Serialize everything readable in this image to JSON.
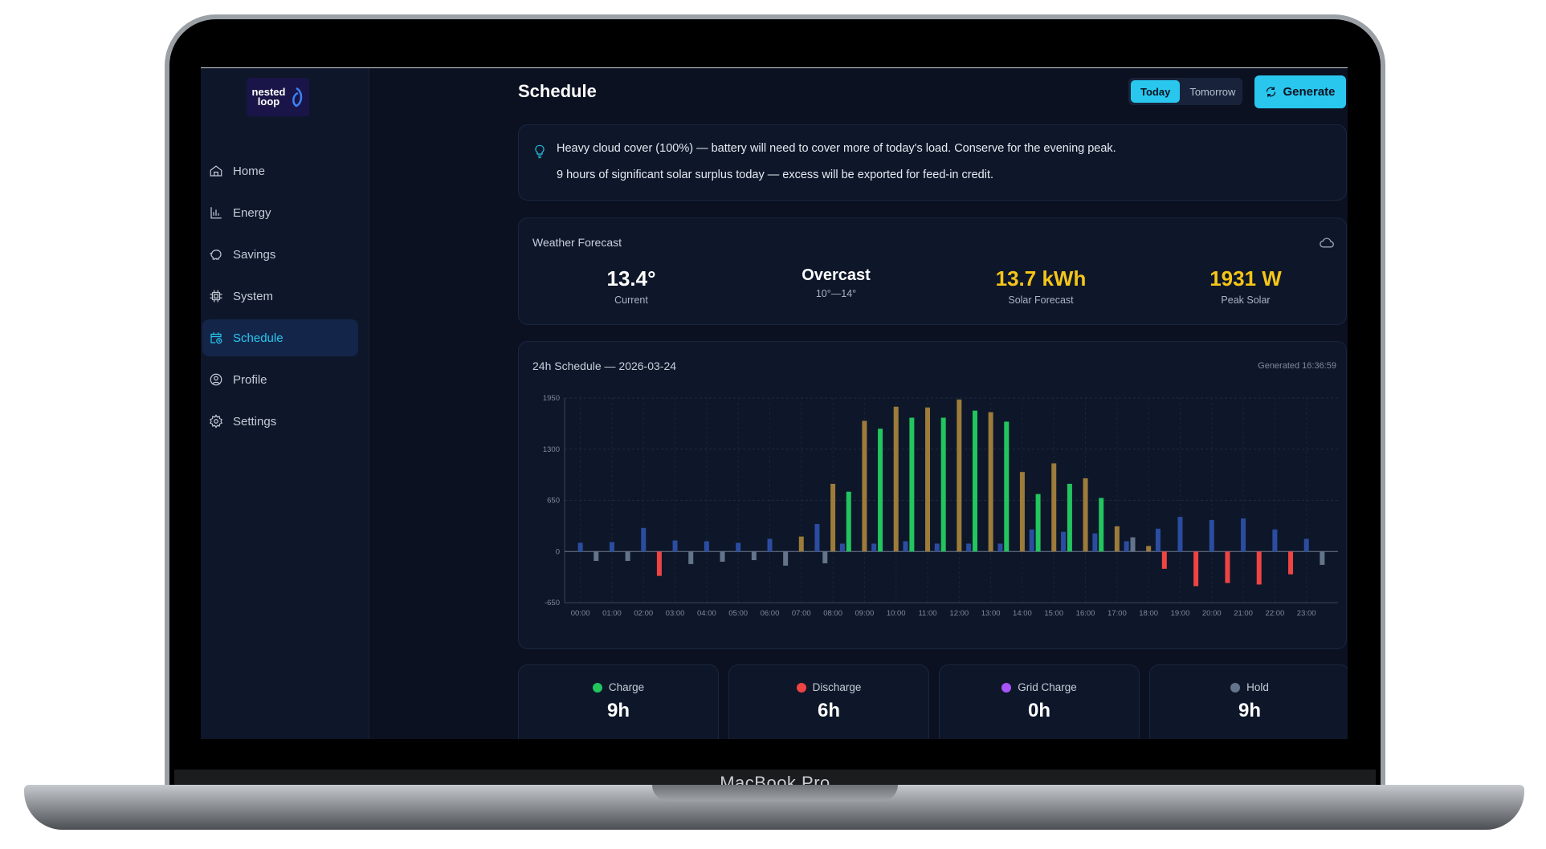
{
  "device": {
    "label": "MacBook Pro"
  },
  "brand": {
    "logo_text": "nested loop"
  },
  "sidebar": {
    "items": [
      {
        "label": "Home",
        "icon": "home-icon"
      },
      {
        "label": "Energy",
        "icon": "bar-chart-icon"
      },
      {
        "label": "Savings",
        "icon": "piggy-bank-icon"
      },
      {
        "label": "System",
        "icon": "chip-icon"
      },
      {
        "label": "Schedule",
        "icon": "calendar-clock-icon",
        "active": true
      },
      {
        "label": "Profile",
        "icon": "user-circle-icon"
      },
      {
        "label": "Settings",
        "icon": "gear-icon"
      }
    ]
  },
  "header": {
    "title": "Schedule",
    "toggle": {
      "today": "Today",
      "tomorrow": "Tomorrow",
      "selected": "Today"
    },
    "generate_label": "Generate"
  },
  "insights": [
    "Heavy cloud cover (100%) — battery will need to cover more of today's load. Conserve for the evening peak.",
    "9 hours of significant solar surplus today — excess will be exported for feed-in credit."
  ],
  "weather": {
    "title": "Weather Forecast",
    "current_value": "13.4°",
    "current_label": "Current",
    "condition_value": "Overcast",
    "condition_range": "10°—14°",
    "solar_value": "13.7 kWh",
    "solar_label": "Solar Forecast",
    "peak_value": "1931 W",
    "peak_label": "Peak Solar"
  },
  "schedule": {
    "title": "24h Schedule — 2026-03-24",
    "generated": "Generated 16:36:59"
  },
  "colors": {
    "charge": "#22c55e",
    "discharge": "#ef4444",
    "grid_charge": "#a855f7",
    "hold": "#64748b",
    "solar": "#9c7b3b",
    "load": "#2b4da1",
    "accent": "#29c7ee"
  },
  "chart_data": {
    "type": "bar",
    "title": "24h Schedule — 2026-03-24",
    "ylim": [
      -650,
      1950
    ],
    "yticks": [
      1950,
      1300,
      650,
      0,
      -650
    ],
    "grid": true,
    "x": [
      "00:00",
      "01:00",
      "02:00",
      "03:00",
      "04:00",
      "05:00",
      "06:00",
      "07:00",
      "08:00",
      "09:00",
      "10:00",
      "11:00",
      "12:00",
      "13:00",
      "14:00",
      "15:00",
      "16:00",
      "17:00",
      "18:00",
      "19:00",
      "20:00",
      "21:00",
      "22:00",
      "23:00"
    ],
    "bars": [
      {
        "t": 0,
        "v": 110,
        "k": "load"
      },
      {
        "t": 0.5,
        "v": -120,
        "k": "hold"
      },
      {
        "t": 1,
        "v": 120,
        "k": "load"
      },
      {
        "t": 1.5,
        "v": -120,
        "k": "hold"
      },
      {
        "t": 2,
        "v": 300,
        "k": "load"
      },
      {
        "t": 2.5,
        "v": -310,
        "k": "discharge"
      },
      {
        "t": 3,
        "v": 140,
        "k": "load"
      },
      {
        "t": 3.5,
        "v": -160,
        "k": "hold"
      },
      {
        "t": 4,
        "v": 130,
        "k": "load"
      },
      {
        "t": 4.5,
        "v": -130,
        "k": "hold"
      },
      {
        "t": 5,
        "v": 110,
        "k": "load"
      },
      {
        "t": 5.5,
        "v": -110,
        "k": "hold"
      },
      {
        "t": 6,
        "v": 160,
        "k": "load"
      },
      {
        "t": 6.5,
        "v": -180,
        "k": "hold"
      },
      {
        "t": 7,
        "v": 190,
        "k": "solar"
      },
      {
        "t": 7.5,
        "v": 350,
        "k": "load"
      },
      {
        "t": 7.75,
        "v": -150,
        "k": "hold"
      },
      {
        "t": 8,
        "v": 860,
        "k": "solar"
      },
      {
        "t": 8.3,
        "v": 100,
        "k": "load"
      },
      {
        "t": 8.5,
        "v": 760,
        "k": "charge"
      },
      {
        "t": 9,
        "v": 1660,
        "k": "solar"
      },
      {
        "t": 9.3,
        "v": 100,
        "k": "load"
      },
      {
        "t": 9.5,
        "v": 1560,
        "k": "charge"
      },
      {
        "t": 10,
        "v": 1840,
        "k": "solar"
      },
      {
        "t": 10.3,
        "v": 130,
        "k": "load"
      },
      {
        "t": 10.5,
        "v": 1700,
        "k": "charge"
      },
      {
        "t": 11,
        "v": 1830,
        "k": "solar"
      },
      {
        "t": 11.3,
        "v": 100,
        "k": "load"
      },
      {
        "t": 11.5,
        "v": 1700,
        "k": "charge"
      },
      {
        "t": 12,
        "v": 1931,
        "k": "solar"
      },
      {
        "t": 12.3,
        "v": 100,
        "k": "load"
      },
      {
        "t": 12.5,
        "v": 1790,
        "k": "charge"
      },
      {
        "t": 13,
        "v": 1770,
        "k": "solar"
      },
      {
        "t": 13.3,
        "v": 100,
        "k": "load"
      },
      {
        "t": 13.5,
        "v": 1650,
        "k": "charge"
      },
      {
        "t": 14,
        "v": 1010,
        "k": "solar"
      },
      {
        "t": 14.3,
        "v": 280,
        "k": "load"
      },
      {
        "t": 14.5,
        "v": 730,
        "k": "charge"
      },
      {
        "t": 15,
        "v": 1120,
        "k": "solar"
      },
      {
        "t": 15.3,
        "v": 250,
        "k": "load"
      },
      {
        "t": 15.5,
        "v": 860,
        "k": "charge"
      },
      {
        "t": 16,
        "v": 930,
        "k": "solar"
      },
      {
        "t": 16.3,
        "v": 230,
        "k": "load"
      },
      {
        "t": 16.5,
        "v": 680,
        "k": "charge"
      },
      {
        "t": 17,
        "v": 320,
        "k": "solar"
      },
      {
        "t": 17.3,
        "v": 130,
        "k": "load"
      },
      {
        "t": 17.5,
        "v": 180,
        "k": "hold"
      },
      {
        "t": 18,
        "v": 70,
        "k": "solar"
      },
      {
        "t": 18.3,
        "v": 290,
        "k": "load"
      },
      {
        "t": 18.5,
        "v": -220,
        "k": "discharge"
      },
      {
        "t": 19,
        "v": 440,
        "k": "load"
      },
      {
        "t": 19.5,
        "v": -440,
        "k": "discharge"
      },
      {
        "t": 20,
        "v": 400,
        "k": "load"
      },
      {
        "t": 20.5,
        "v": -400,
        "k": "discharge"
      },
      {
        "t": 21,
        "v": 420,
        "k": "load"
      },
      {
        "t": 21.5,
        "v": -420,
        "k": "discharge"
      },
      {
        "t": 22,
        "v": 280,
        "k": "load"
      },
      {
        "t": 22.5,
        "v": -290,
        "k": "discharge"
      },
      {
        "t": 23,
        "v": 160,
        "k": "load"
      },
      {
        "t": 23.5,
        "v": -170,
        "k": "hold"
      }
    ]
  },
  "summary": [
    {
      "label": "Charge",
      "value": "9h",
      "color": "#22c55e"
    },
    {
      "label": "Discharge",
      "value": "6h",
      "color": "#ef4444"
    },
    {
      "label": "Grid Charge",
      "value": "0h",
      "color": "#a855f7"
    },
    {
      "label": "Hold",
      "value": "9h",
      "color": "#64748b"
    }
  ]
}
